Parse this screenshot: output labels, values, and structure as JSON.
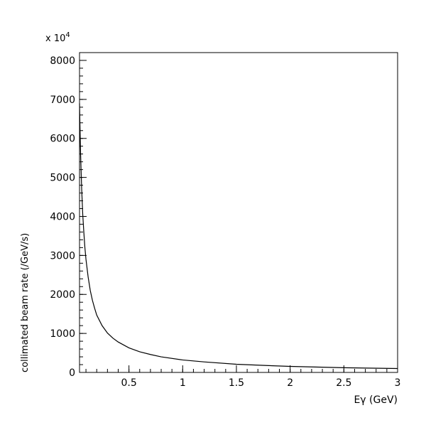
{
  "chart_data": {
    "type": "line",
    "title": "",
    "xlabel": "Eγ (GeV)",
    "ylabel": "collimated beam rate (/GeV/s)",
    "y_multiplier_label": "x 10",
    "y_multiplier_exponent": "4",
    "xlim": [
      0.04,
      3.0
    ],
    "ylim": [
      0,
      8200
    ],
    "x_ticks": [
      {
        "value": 0.5,
        "label": "0.5"
      },
      {
        "value": 1.0,
        "label": "1"
      },
      {
        "value": 1.5,
        "label": "1.5"
      },
      {
        "value": 2.0,
        "label": "2"
      },
      {
        "value": 2.5,
        "label": "2.5"
      },
      {
        "value": 3.0,
        "label": "3"
      }
    ],
    "y_ticks": [
      {
        "value": 0,
        "label": "0"
      },
      {
        "value": 1000,
        "label": "1000"
      },
      {
        "value": 2000,
        "label": "2000"
      },
      {
        "value": 3000,
        "label": "3000"
      },
      {
        "value": 4000,
        "label": "4000"
      },
      {
        "value": 5000,
        "label": "5000"
      },
      {
        "value": 6000,
        "label": "6000"
      },
      {
        "value": 7000,
        "label": "7000"
      },
      {
        "value": 8000,
        "label": "8000"
      }
    ],
    "x_minor_step": 0.1,
    "y_minor_step": 200,
    "grid": false,
    "series": [
      {
        "x": [
          0.04,
          0.045,
          0.05,
          0.06,
          0.07,
          0.08,
          0.09,
          0.1,
          0.12,
          0.14,
          0.16,
          0.18,
          0.2,
          0.25,
          0.3,
          0.35,
          0.4,
          0.5,
          0.6,
          0.7,
          0.8,
          1.0,
          1.2,
          1.5,
          1.8,
          2.0,
          2.5,
          3.0
        ],
        "values": [
          6900,
          6200,
          5600,
          4700,
          4050,
          3600,
          3200,
          2900,
          2450,
          2100,
          1850,
          1650,
          1470,
          1200,
          1010,
          880,
          780,
          630,
          530,
          460,
          400,
          320,
          270,
          210,
          175,
          155,
          120,
          100
        ]
      }
    ]
  }
}
